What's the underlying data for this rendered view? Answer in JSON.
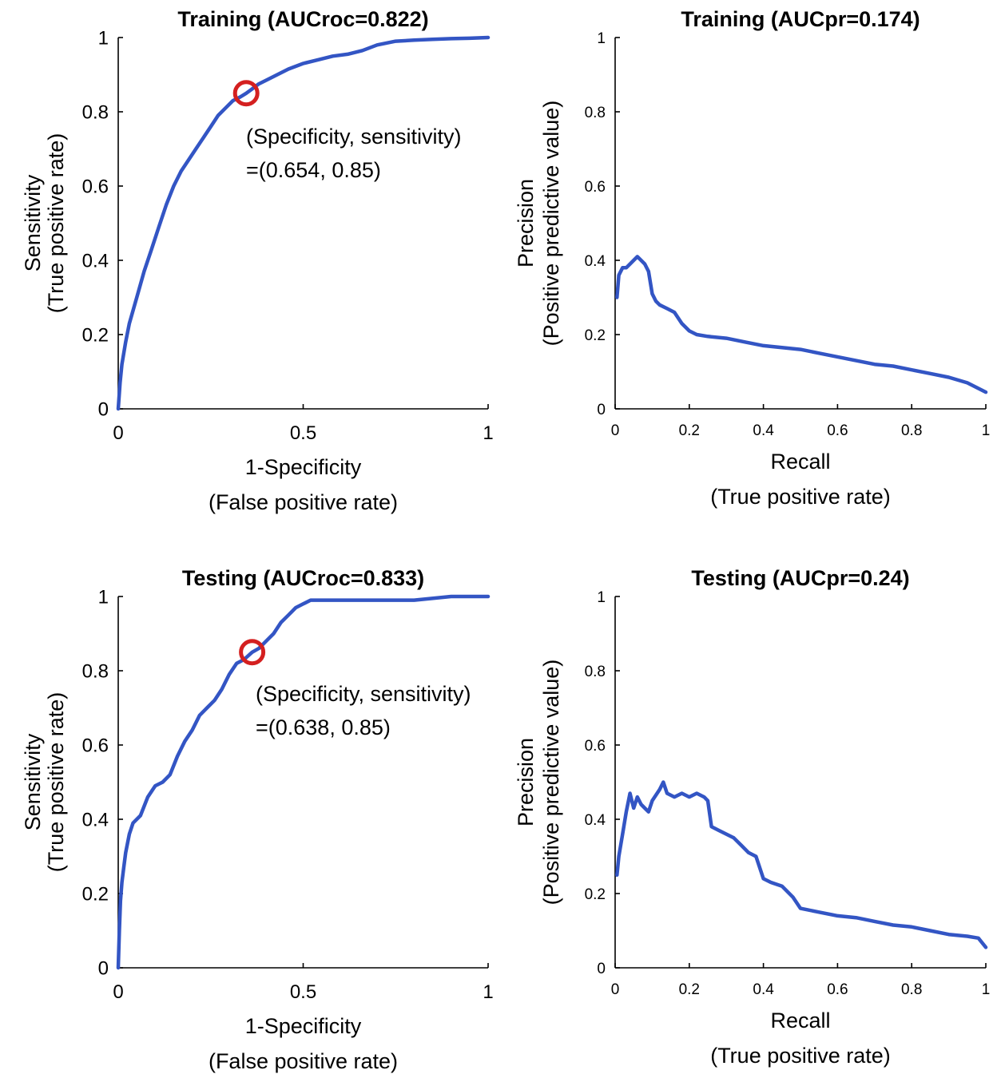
{
  "colors": {
    "curve": "#3355c4",
    "marker": "#d42020",
    "axis": "#000000"
  },
  "chart_data": [
    {
      "type": "line",
      "title": "Training (AUCroc=0.822)",
      "xlabel": [
        "1-Specificity",
        "(False positive rate)"
      ],
      "ylabel": [
        "Sensitivity",
        "(True positive rate)"
      ],
      "xlim": [
        0,
        1
      ],
      "ylim": [
        0,
        1
      ],
      "xticks": [
        0,
        0.5,
        1
      ],
      "xtick_labels": [
        "0",
        "0.5",
        "1"
      ],
      "yticks": [
        0,
        0.2,
        0.4,
        0.6,
        0.8,
        1
      ],
      "ytick_labels": [
        "0",
        "0.2",
        "0.4",
        "0.6",
        "0.8",
        "1"
      ],
      "grid": false,
      "series": [
        {
          "x": [
            0,
            0.005,
            0.01,
            0.02,
            0.03,
            0.05,
            0.07,
            0.09,
            0.11,
            0.13,
            0.15,
            0.17,
            0.19,
            0.21,
            0.23,
            0.25,
            0.27,
            0.29,
            0.31,
            0.33,
            0.346,
            0.36,
            0.38,
            0.4,
            0.43,
            0.46,
            0.5,
            0.54,
            0.58,
            0.62,
            0.66,
            0.7,
            0.75,
            0.8,
            0.85,
            0.9,
            0.95,
            1.0
          ],
          "y": [
            0,
            0.07,
            0.12,
            0.18,
            0.23,
            0.3,
            0.37,
            0.43,
            0.49,
            0.55,
            0.6,
            0.64,
            0.67,
            0.7,
            0.73,
            0.76,
            0.79,
            0.81,
            0.83,
            0.84,
            0.85,
            0.86,
            0.875,
            0.885,
            0.9,
            0.915,
            0.93,
            0.94,
            0.95,
            0.955,
            0.965,
            0.98,
            0.99,
            0.993,
            0.995,
            0.997,
            0.998,
            1.0
          ]
        }
      ],
      "marker": {
        "x": 0.346,
        "y": 0.85
      },
      "annotation": [
        "(Specificity, sensitivity)",
        "=(0.654, 0.85)"
      ]
    },
    {
      "type": "line",
      "title": "Training (AUCpr=0.174)",
      "xlabel": [
        "Recall",
        "(True positive rate)"
      ],
      "ylabel": [
        "Precision",
        "(Positive predictive value)"
      ],
      "xlim": [
        0,
        1
      ],
      "ylim": [
        0,
        1
      ],
      "xticks": [
        0,
        0.2,
        0.4,
        0.6,
        0.8,
        1
      ],
      "xtick_labels": [
        "0",
        "0.2",
        "0.4",
        "0.6",
        "0.8",
        "1"
      ],
      "yticks": [
        0,
        0.2,
        0.4,
        0.6,
        0.8,
        1
      ],
      "ytick_labels": [
        "0",
        "0.2",
        "0.4",
        "0.6",
        "0.8",
        "1"
      ],
      "grid": false,
      "series": [
        {
          "x": [
            0.005,
            0.01,
            0.02,
            0.03,
            0.04,
            0.05,
            0.06,
            0.07,
            0.08,
            0.09,
            0.1,
            0.11,
            0.12,
            0.14,
            0.16,
            0.18,
            0.2,
            0.22,
            0.25,
            0.3,
            0.35,
            0.4,
            0.45,
            0.5,
            0.55,
            0.6,
            0.65,
            0.7,
            0.75,
            0.8,
            0.85,
            0.9,
            0.95,
            1.0
          ],
          "y": [
            0.3,
            0.36,
            0.38,
            0.38,
            0.39,
            0.4,
            0.41,
            0.4,
            0.39,
            0.37,
            0.31,
            0.29,
            0.28,
            0.27,
            0.26,
            0.23,
            0.21,
            0.2,
            0.195,
            0.19,
            0.18,
            0.17,
            0.165,
            0.16,
            0.15,
            0.14,
            0.13,
            0.12,
            0.115,
            0.105,
            0.095,
            0.085,
            0.07,
            0.045
          ]
        }
      ]
    },
    {
      "type": "line",
      "title": "Testing (AUCroc=0.833)",
      "xlabel": [
        "1-Specificity",
        "(False positive rate)"
      ],
      "ylabel": [
        "Sensitivity",
        "(True positive rate)"
      ],
      "xlim": [
        0,
        1
      ],
      "ylim": [
        0,
        1
      ],
      "xticks": [
        0,
        0.5,
        1
      ],
      "xtick_labels": [
        "0",
        "0.5",
        "1"
      ],
      "yticks": [
        0,
        0.2,
        0.4,
        0.6,
        0.8,
        1
      ],
      "ytick_labels": [
        "0",
        "0.2",
        "0.4",
        "0.6",
        "0.8",
        "1"
      ],
      "grid": false,
      "series": [
        {
          "x": [
            0,
            0.003,
            0.006,
            0.01,
            0.015,
            0.02,
            0.03,
            0.04,
            0.06,
            0.08,
            0.1,
            0.12,
            0.14,
            0.16,
            0.18,
            0.2,
            0.22,
            0.24,
            0.26,
            0.28,
            0.3,
            0.32,
            0.34,
            0.362,
            0.38,
            0.4,
            0.42,
            0.44,
            0.46,
            0.48,
            0.5,
            0.52,
            0.56,
            0.6,
            0.7,
            0.8,
            0.9,
            1.0
          ],
          "y": [
            0,
            0.1,
            0.18,
            0.23,
            0.27,
            0.31,
            0.36,
            0.39,
            0.41,
            0.46,
            0.49,
            0.5,
            0.52,
            0.57,
            0.61,
            0.64,
            0.68,
            0.7,
            0.72,
            0.75,
            0.79,
            0.82,
            0.83,
            0.85,
            0.86,
            0.88,
            0.9,
            0.93,
            0.95,
            0.97,
            0.98,
            0.99,
            0.99,
            0.99,
            0.99,
            0.99,
            1.0,
            1.0
          ]
        }
      ],
      "marker": {
        "x": 0.362,
        "y": 0.85
      },
      "annotation": [
        "(Specificity, sensitivity)",
        "=(0.638, 0.85)"
      ]
    },
    {
      "type": "line",
      "title": "Testing (AUCpr=0.24)",
      "xlabel": [
        "Recall",
        "(True positive rate)"
      ],
      "ylabel": [
        "Precision",
        "(Positive predictive value)"
      ],
      "xlim": [
        0,
        1
      ],
      "ylim": [
        0,
        1
      ],
      "xticks": [
        0,
        0.2,
        0.4,
        0.6,
        0.8,
        1
      ],
      "xtick_labels": [
        "0",
        "0.2",
        "0.4",
        "0.6",
        "0.8",
        "1"
      ],
      "yticks": [
        0,
        0.2,
        0.4,
        0.6,
        0.8,
        1
      ],
      "ytick_labels": [
        "0",
        "0.2",
        "0.4",
        "0.6",
        "0.8",
        "1"
      ],
      "grid": false,
      "series": [
        {
          "x": [
            0.005,
            0.01,
            0.02,
            0.03,
            0.04,
            0.05,
            0.06,
            0.07,
            0.08,
            0.09,
            0.1,
            0.12,
            0.13,
            0.14,
            0.16,
            0.18,
            0.2,
            0.22,
            0.24,
            0.25,
            0.26,
            0.28,
            0.3,
            0.32,
            0.34,
            0.36,
            0.38,
            0.4,
            0.42,
            0.45,
            0.48,
            0.5,
            0.55,
            0.6,
            0.65,
            0.7,
            0.75,
            0.8,
            0.85,
            0.9,
            0.95,
            0.98,
            1.0
          ],
          "y": [
            0.25,
            0.3,
            0.36,
            0.42,
            0.47,
            0.43,
            0.46,
            0.44,
            0.43,
            0.42,
            0.45,
            0.48,
            0.5,
            0.47,
            0.46,
            0.47,
            0.46,
            0.47,
            0.46,
            0.45,
            0.38,
            0.37,
            0.36,
            0.35,
            0.33,
            0.31,
            0.3,
            0.24,
            0.23,
            0.22,
            0.19,
            0.16,
            0.15,
            0.14,
            0.135,
            0.125,
            0.115,
            0.11,
            0.1,
            0.09,
            0.085,
            0.08,
            0.055
          ]
        }
      ]
    }
  ]
}
